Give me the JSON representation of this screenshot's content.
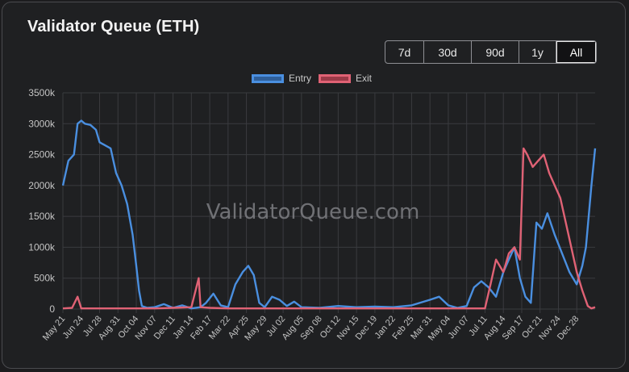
{
  "title": "Validator Queue (ETH)",
  "watermark": "ValidatorQueue.com",
  "ranges": [
    {
      "label": "7d",
      "active": false
    },
    {
      "label": "30d",
      "active": false
    },
    {
      "label": "90d",
      "active": false
    },
    {
      "label": "1y",
      "active": false
    },
    {
      "label": "All",
      "active": true
    }
  ],
  "colors": {
    "entry": "#4a8fe0",
    "entry_fill": "#2f5f9a",
    "exit": "#e06275",
    "exit_fill": "#9b3a48",
    "grid": "#3a3b3f",
    "text": "#c4c4c4"
  },
  "chart_data": {
    "type": "line",
    "title": "Validator Queue (ETH)",
    "xlabel": "",
    "ylabel": "",
    "ylim": [
      0,
      3500000
    ],
    "y_ticks": [
      0,
      500000,
      1000000,
      1500000,
      2000000,
      2500000,
      3000000,
      3500000
    ],
    "y_tick_labels": [
      "0",
      "500k",
      "1000k",
      "1500k",
      "2000k",
      "2500k",
      "3000k",
      "3500k"
    ],
    "x_tick_labels": [
      "May 21",
      "Jun 24",
      "Jul 28",
      "Aug 31",
      "Oct 04",
      "Nov 07",
      "Dec 11",
      "Jan 14",
      "Feb 17",
      "Mar 22",
      "Apr 25",
      "May 29",
      "Jul 02",
      "Aug 05",
      "Sep 08",
      "Oct 12",
      "Nov 15",
      "Dec 19",
      "Jan 22",
      "Feb 25",
      "Mar 31",
      "May 04",
      "Jun 07",
      "Jul 11",
      "Aug 14",
      "Sep 17",
      "Oct 21",
      "Nov 24",
      "Dec 28"
    ],
    "grid": true,
    "legend_position": "top-center",
    "series": [
      {
        "name": "Entry",
        "points": [
          [
            0,
            2000000
          ],
          [
            0.3,
            2400000
          ],
          [
            0.6,
            2500000
          ],
          [
            0.8,
            3000000
          ],
          [
            1,
            3050000
          ],
          [
            1.2,
            3000000
          ],
          [
            1.5,
            2980000
          ],
          [
            1.8,
            2900000
          ],
          [
            2,
            2700000
          ],
          [
            2.3,
            2650000
          ],
          [
            2.6,
            2600000
          ],
          [
            2.9,
            2200000
          ],
          [
            3.2,
            2000000
          ],
          [
            3.5,
            1700000
          ],
          [
            3.8,
            1200000
          ],
          [
            4.0,
            700000
          ],
          [
            4.15,
            300000
          ],
          [
            4.3,
            50000
          ],
          [
            4.6,
            20000
          ],
          [
            5,
            30000
          ],
          [
            5.5,
            80000
          ],
          [
            6,
            20000
          ],
          [
            6.5,
            60000
          ],
          [
            7,
            10000
          ],
          [
            7.5,
            30000
          ],
          [
            7.8,
            100000
          ],
          [
            8.2,
            250000
          ],
          [
            8.6,
            60000
          ],
          [
            9,
            30000
          ],
          [
            9.4,
            400000
          ],
          [
            9.8,
            600000
          ],
          [
            10.1,
            700000
          ],
          [
            10.4,
            550000
          ],
          [
            10.7,
            100000
          ],
          [
            11,
            30000
          ],
          [
            11.4,
            200000
          ],
          [
            11.8,
            150000
          ],
          [
            12.2,
            50000
          ],
          [
            12.6,
            120000
          ],
          [
            13,
            30000
          ],
          [
            14,
            20000
          ],
          [
            15,
            50000
          ],
          [
            16,
            30000
          ],
          [
            17,
            40000
          ],
          [
            18,
            30000
          ],
          [
            19,
            60000
          ],
          [
            20,
            150000
          ],
          [
            20.5,
            200000
          ],
          [
            21,
            60000
          ],
          [
            21.5,
            20000
          ],
          [
            22,
            50000
          ],
          [
            22.4,
            350000
          ],
          [
            22.8,
            450000
          ],
          [
            23.2,
            350000
          ],
          [
            23.6,
            200000
          ],
          [
            24,
            600000
          ],
          [
            24.3,
            800000
          ],
          [
            24.6,
            1000000
          ],
          [
            24.9,
            500000
          ],
          [
            25.2,
            200000
          ],
          [
            25.5,
            100000
          ],
          [
            25.8,
            1400000
          ],
          [
            26.1,
            1300000
          ],
          [
            26.4,
            1550000
          ],
          [
            26.8,
            1200000
          ],
          [
            27.2,
            900000
          ],
          [
            27.6,
            600000
          ],
          [
            28,
            400000
          ],
          [
            28.3,
            700000
          ],
          [
            28.5,
            1000000
          ],
          [
            28.8,
            2000000
          ],
          [
            29,
            2600000
          ]
        ]
      },
      {
        "name": "Exit",
        "points": [
          [
            0,
            10000
          ],
          [
            0.5,
            20000
          ],
          [
            0.8,
            200000
          ],
          [
            1,
            10000
          ],
          [
            2,
            10000
          ],
          [
            3,
            10000
          ],
          [
            4,
            10000
          ],
          [
            5,
            10000
          ],
          [
            6,
            20000
          ],
          [
            7,
            30000
          ],
          [
            7.4,
            500000
          ],
          [
            7.5,
            30000
          ],
          [
            8,
            20000
          ],
          [
            9,
            10000
          ],
          [
            10,
            10000
          ],
          [
            11,
            10000
          ],
          [
            12,
            10000
          ],
          [
            13,
            10000
          ],
          [
            14,
            10000
          ],
          [
            15,
            10000
          ],
          [
            16,
            10000
          ],
          [
            17,
            10000
          ],
          [
            18,
            10000
          ],
          [
            19,
            10000
          ],
          [
            20,
            10000
          ],
          [
            21,
            10000
          ],
          [
            22,
            10000
          ],
          [
            23,
            10000
          ],
          [
            23.3,
            400000
          ],
          [
            23.6,
            800000
          ],
          [
            24,
            600000
          ],
          [
            24.3,
            900000
          ],
          [
            24.6,
            1000000
          ],
          [
            24.9,
            800000
          ],
          [
            25.1,
            2600000
          ],
          [
            25.3,
            2500000
          ],
          [
            25.6,
            2300000
          ],
          [
            25.9,
            2400000
          ],
          [
            26.2,
            2500000
          ],
          [
            26.5,
            2200000
          ],
          [
            26.8,
            2000000
          ],
          [
            27.1,
            1800000
          ],
          [
            27.4,
            1400000
          ],
          [
            27.7,
            1000000
          ],
          [
            28,
            600000
          ],
          [
            28.3,
            300000
          ],
          [
            28.6,
            50000
          ],
          [
            28.8,
            10000
          ],
          [
            29,
            30000
          ]
        ]
      }
    ]
  }
}
